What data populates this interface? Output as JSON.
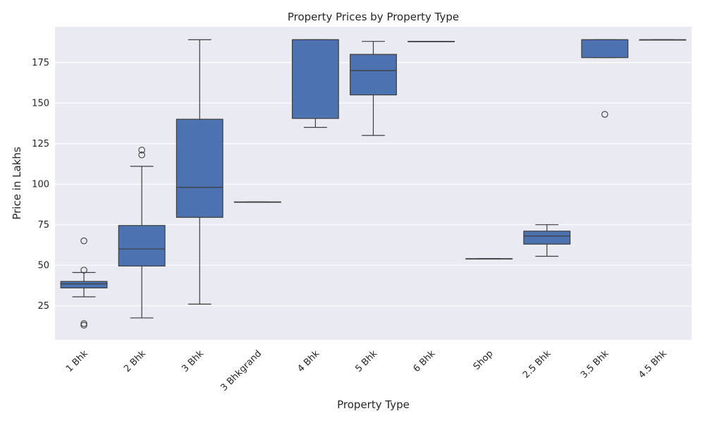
{
  "chart_data": {
    "type": "box",
    "title": "Property Prices by Property Type",
    "xlabel": "Property Type",
    "ylabel": "Price in Lakhs",
    "ylim": [
      4,
      197
    ],
    "yticks": [
      25,
      50,
      75,
      100,
      125,
      150,
      175
    ],
    "grid": true,
    "box_color": "#4c72b0",
    "background_color": "#eaeaf2",
    "categories": [
      "1 Bhk",
      "2 Bhk",
      "3 Bhk",
      "3 Bhkgrand",
      "4 Bhk",
      "5 Bhk",
      "6 Bhk",
      "Shop",
      "2.5 Bhk",
      "3.5 Bhk",
      "4.5 Bhk"
    ],
    "boxes": [
      {
        "category": "1 Bhk",
        "whisker_low": 30.5,
        "q1": 36,
        "median": 38.5,
        "q3": 40,
        "whisker_high": 45.5,
        "outliers": [
          65,
          47,
          14,
          13
        ]
      },
      {
        "category": "2 Bhk",
        "whisker_low": 17.5,
        "q1": 49.5,
        "median": 60,
        "q3": 74.5,
        "whisker_high": 111,
        "outliers": [
          121,
          118
        ]
      },
      {
        "category": "3 Bhk",
        "whisker_low": 26,
        "q1": 79.5,
        "median": 98,
        "q3": 140,
        "whisker_high": 189,
        "outliers": []
      },
      {
        "category": "3 Bhkgrand",
        "whisker_low": 89,
        "q1": 89,
        "median": 89,
        "q3": 89,
        "whisker_high": 89,
        "outliers": []
      },
      {
        "category": "4 Bhk",
        "whisker_low": 135,
        "q1": 140.5,
        "median": 189,
        "q3": 189,
        "whisker_high": 189,
        "outliers": []
      },
      {
        "category": "5 Bhk",
        "whisker_low": 130,
        "q1": 155,
        "median": 170,
        "q3": 180,
        "whisker_high": 188,
        "outliers": []
      },
      {
        "category": "6 Bhk",
        "whisker_low": 188,
        "q1": 188,
        "median": 188,
        "q3": 188,
        "whisker_high": 188,
        "outliers": []
      },
      {
        "category": "Shop",
        "whisker_low": 54,
        "q1": 54,
        "median": 54,
        "q3": 54,
        "whisker_high": 54,
        "outliers": []
      },
      {
        "category": "2.5 Bhk",
        "whisker_low": 55.5,
        "q1": 63,
        "median": 68,
        "q3": 71,
        "whisker_high": 75,
        "outliers": []
      },
      {
        "category": "3.5 Bhk",
        "whisker_low": 178,
        "q1": 178,
        "median": 189,
        "q3": 189,
        "whisker_high": 189,
        "outliers": [
          143
        ]
      },
      {
        "category": "4.5 Bhk",
        "whisker_low": 189,
        "q1": 189,
        "median": 189,
        "q3": 189,
        "whisker_high": 189,
        "outliers": []
      }
    ]
  }
}
